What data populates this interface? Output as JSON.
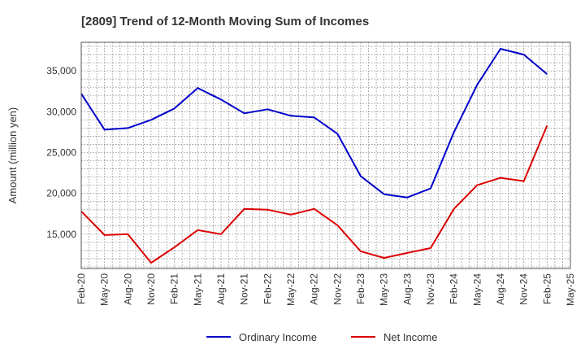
{
  "chart_data": {
    "type": "line",
    "title": "[2809]  Trend of 12-Month Moving Sum of Incomes",
    "xlabel": "",
    "ylabel": "Amount (million yen)",
    "categories": [
      "Feb-20",
      "May-20",
      "Aug-20",
      "Nov-20",
      "Feb-21",
      "May-21",
      "Aug-21",
      "Nov-21",
      "Feb-22",
      "May-22",
      "Aug-22",
      "Nov-22",
      "Feb-23",
      "May-23",
      "Aug-23",
      "Nov-23",
      "Feb-24",
      "May-24",
      "Aug-24",
      "Nov-24",
      "Feb-25",
      "May-25"
    ],
    "ylim": [
      10800,
      38500
    ],
    "yticks": [
      15000,
      20000,
      25000,
      30000,
      35000
    ],
    "ytick_labels": [
      "15,000",
      "20,000",
      "25,000",
      "30,000",
      "35,000"
    ],
    "grid": true,
    "legend_position": "bottom-center",
    "series": [
      {
        "name": "Ordinary Income",
        "color": "#0000cc",
        "values": [
          32200,
          27800,
          28000,
          29000,
          30400,
          32900,
          31500,
          29800,
          30300,
          29500,
          29300,
          27300,
          22100,
          19900,
          19500,
          20600,
          27500,
          33300,
          37700,
          37000,
          34600,
          null
        ]
      },
      {
        "name": "Net Income",
        "color": "#dd0000",
        "values": [
          17800,
          14900,
          15000,
          11500,
          13400,
          15500,
          15000,
          18100,
          18000,
          17400,
          18100,
          16100,
          12900,
          12100,
          12700,
          13300,
          18100,
          21000,
          21900,
          21500,
          28300,
          null
        ]
      }
    ]
  }
}
